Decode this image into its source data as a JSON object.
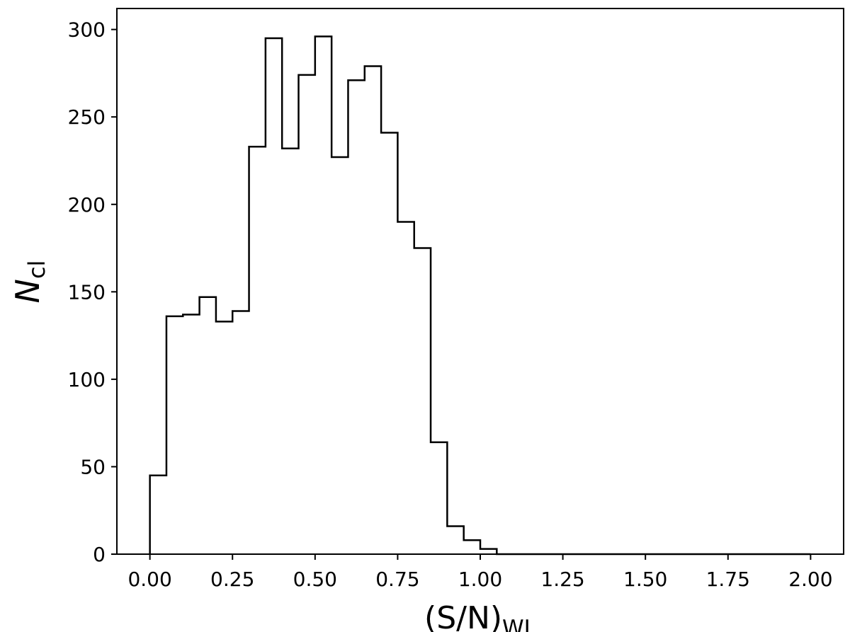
{
  "chart_data": {
    "type": "histogram",
    "title": "",
    "xlabel": "(S/N)",
    "xlabel_sub": "WL",
    "ylabel": "N",
    "ylabel_sub": "cl",
    "xlim": [
      -0.1,
      2.1
    ],
    "ylim": [
      0,
      312
    ],
    "xticks": [
      "0.00",
      "0.25",
      "0.50",
      "0.75",
      "1.00",
      "1.25",
      "1.50",
      "1.75",
      "2.00"
    ],
    "yticks": [
      "0",
      "50",
      "100",
      "150",
      "200",
      "250",
      "300"
    ],
    "bin_edges": [
      0.0,
      0.05,
      0.1,
      0.15,
      0.2,
      0.25,
      0.3,
      0.35,
      0.4,
      0.45,
      0.5,
      0.55,
      0.6,
      0.65,
      0.7,
      0.75,
      0.8,
      0.85,
      0.9,
      0.95,
      1.0,
      1.05,
      1.1,
      1.15,
      1.2,
      1.25,
      1.3,
      1.35,
      1.4,
      1.45,
      1.5,
      1.55,
      1.6,
      1.65,
      1.7,
      1.75,
      1.8,
      1.85,
      1.9,
      1.95,
      2.0
    ],
    "counts": [
      45,
      136,
      137,
      147,
      133,
      139,
      233,
      295,
      232,
      274,
      296,
      227,
      271,
      279,
      241,
      190,
      175,
      64,
      16,
      8,
      3,
      0,
      0,
      0,
      0,
      0,
      0,
      0,
      0,
      0,
      0,
      0,
      0,
      0,
      0,
      0,
      0,
      0,
      0,
      0
    ],
    "histtype": "step",
    "color": "#000000",
    "grid": false,
    "legend": false
  }
}
